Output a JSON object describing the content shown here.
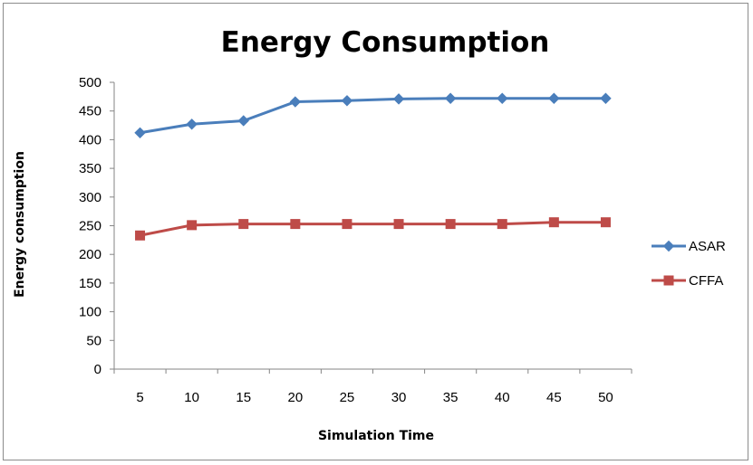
{
  "chart_data": {
    "type": "line",
    "title": "Energy Consumption",
    "xlabel": "Simulation Time",
    "ylabel": "Energy consumption",
    "categories": [
      "5",
      "10",
      "15",
      "20",
      "25",
      "30",
      "35",
      "40",
      "45",
      "50"
    ],
    "ylim": [
      0,
      500
    ],
    "yticks": [
      0,
      50,
      100,
      150,
      200,
      250,
      300,
      350,
      400,
      450,
      500
    ],
    "grid": false,
    "legend": "right",
    "series": [
      {
        "name": "ASAR",
        "color": "#4a7ebb",
        "marker": "diamond",
        "values": [
          412,
          427,
          433,
          466,
          468,
          471,
          472,
          472,
          472,
          472
        ]
      },
      {
        "name": "CFFA",
        "color": "#be4b48",
        "marker": "square",
        "values": [
          233,
          251,
          253,
          253,
          253,
          253,
          253,
          253,
          256,
          256
        ]
      }
    ]
  }
}
